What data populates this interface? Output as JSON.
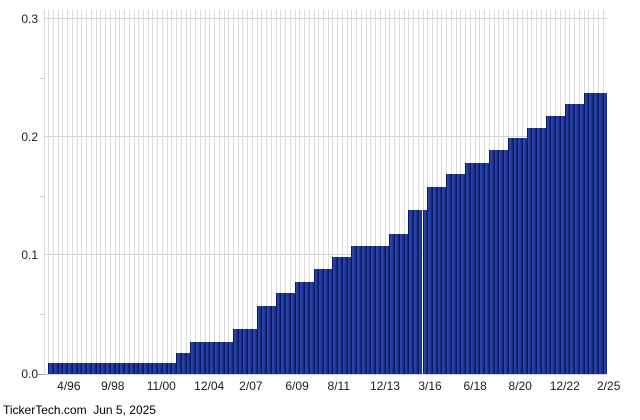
{
  "branding": {
    "footer": "TickerTech.com  Jun 5, 2025"
  },
  "chart_data": {
    "type": "bar",
    "title": "",
    "xlabel": "",
    "ylabel": "",
    "description": "Dividend payment history; each narrow bar is one payment amount, forming rising steps",
    "ylim": [
      0,
      0.3074
    ],
    "y_tick_values": [
      0.3,
      0.2,
      0.1,
      0.0
    ],
    "y_tick_labels": [
      "0.3",
      "0.2",
      "0.1",
      "0.0"
    ],
    "y_minor_tick_values": [
      0.25,
      0.15,
      0.05
    ],
    "grid": "vertical line per bar slot; horizontal lines at 0.1, 0.2, 0.3",
    "legend": "none",
    "bar_count": 118,
    "steps": [
      {
        "value": 0.009,
        "count": 27
      },
      {
        "value": 0.0175,
        "count": 3
      },
      {
        "value": 0.0265,
        "count": 9
      },
      {
        "value": 0.0375,
        "count": 5
      },
      {
        "value": 0.0575,
        "count": 4
      },
      {
        "value": 0.0685,
        "count": 4
      },
      {
        "value": 0.0775,
        "count": 4
      },
      {
        "value": 0.088,
        "count": 4
      },
      {
        "value": 0.0985,
        "count": 4
      },
      {
        "value": 0.108,
        "count": 8
      },
      {
        "value": 0.118,
        "count": 4
      },
      {
        "value": 0.138,
        "count": 4
      },
      {
        "value": 0.158,
        "count": 4
      },
      {
        "value": 0.169,
        "count": 4
      },
      {
        "value": 0.178,
        "count": 5
      },
      {
        "value": 0.189,
        "count": 4
      },
      {
        "value": 0.199,
        "count": 4
      },
      {
        "value": 0.208,
        "count": 4
      },
      {
        "value": 0.2175,
        "count": 4
      },
      {
        "value": 0.228,
        "count": 4
      },
      {
        "value": 0.2375,
        "count": 5
      }
    ],
    "x_tick_labels": [
      "4/96",
      "9/98",
      "11/00",
      "12/04",
      "2/07",
      "6/09",
      "8/11",
      "12/13",
      "3/16",
      "6/18",
      "8/20",
      "12/22",
      "2/25"
    ],
    "x_tick_positions_pct": [
      4.5,
      12.3,
      20.9,
      29.4,
      36.8,
      45.0,
      52.4,
      60.6,
      68.6,
      76.6,
      84.6,
      92.5,
      100.3
    ],
    "colors": {
      "bar_fill": "#2039a4",
      "bar_edge": "#0b1856",
      "bar_highlight": "#2e47b5",
      "gridline": "#dbdbdb",
      "axis_text": "#222222",
      "footer_text": "#000000",
      "background": "#ffffff"
    }
  }
}
